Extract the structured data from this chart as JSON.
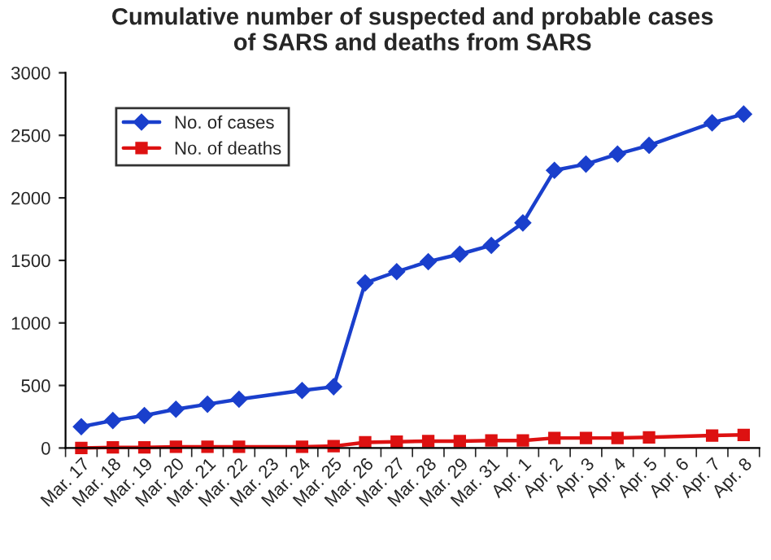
{
  "chart_data": {
    "type": "line",
    "title": "Cumulative number of suspected and probable cases\nof SARS and deaths from SARS",
    "categories": [
      "Mar. 17",
      "Mar. 18",
      "Mar. 19",
      "Mar. 20",
      "Mar. 21",
      "Mar. 22",
      "Mar. 23",
      "Mar. 24",
      "Mar. 25",
      "Mar. 26",
      "Mar. 27",
      "Mar. 28",
      "Mar. 29",
      "Mar. 31",
      "Apr. 1",
      "Apr. 2",
      "Apr. 3",
      "Apr. 4",
      "Apr. 5",
      "Apr. 6",
      "Apr. 7",
      "Apr. 8"
    ],
    "series": [
      {
        "name": "No. of cases",
        "color": "#1a3fcc",
        "marker": "diamond",
        "values": [
          170,
          220,
          260,
          310,
          350,
          390,
          null,
          460,
          490,
          1320,
          1410,
          1490,
          1550,
          1620,
          1800,
          2220,
          2270,
          2350,
          2420,
          null,
          2600,
          2670
        ]
      },
      {
        "name": "No. of deaths",
        "color": "#dd1111",
        "marker": "square",
        "values": [
          0,
          5,
          5,
          10,
          10,
          10,
          null,
          10,
          15,
          45,
          50,
          55,
          55,
          60,
          60,
          80,
          80,
          80,
          85,
          null,
          100,
          105
        ]
      }
    ],
    "ylim": [
      0,
      3000
    ],
    "yticks": [
      0,
      500,
      1000,
      1500,
      2000,
      2500,
      3000
    ],
    "grid": false,
    "legend": "top left",
    "line_style": "solid"
  }
}
